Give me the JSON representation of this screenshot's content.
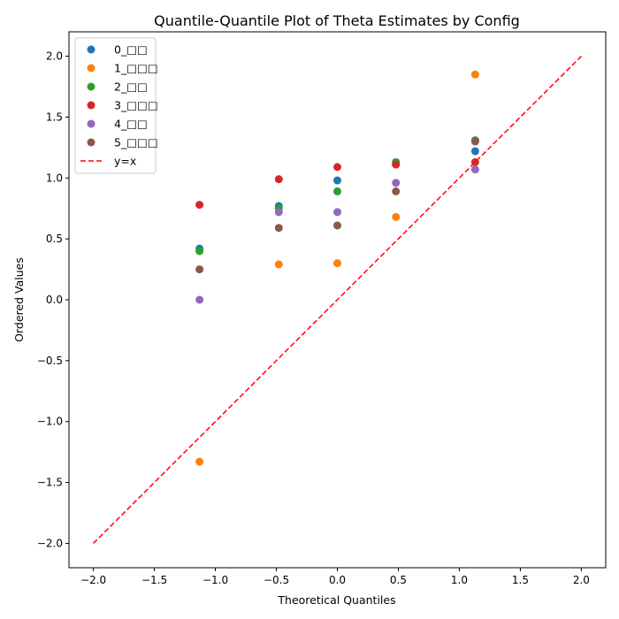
{
  "chart_data": {
    "type": "scatter",
    "title": "Quantile-Quantile Plot of Theta Estimates by Config",
    "xlabel": "Theoretical Quantiles",
    "ylabel": "Ordered Values",
    "xlim": [
      -2.2,
      2.2
    ],
    "ylim": [
      -2.2,
      2.2
    ],
    "xticks": [
      "−2.0",
      "−1.5",
      "−1.0",
      "−0.5",
      "0.0",
      "0.5",
      "1.0",
      "1.5",
      "2.0"
    ],
    "yticks": [
      "−2.0",
      "−1.5",
      "−1.0",
      "−0.5",
      "0.0",
      "0.5",
      "1.0",
      "1.5",
      "2.0"
    ],
    "grid": false,
    "legend_position": "top-left",
    "x": [
      -1.13,
      -0.48,
      0.0,
      0.48,
      1.13
    ],
    "series": [
      {
        "name": "0_□□",
        "color": "#1f77b4",
        "values": [
          0.42,
          0.77,
          0.98,
          1.12,
          1.22
        ]
      },
      {
        "name": "1_□□□",
        "color": "#ff7f0e",
        "values": [
          -1.33,
          0.29,
          0.3,
          0.68,
          1.85
        ]
      },
      {
        "name": "2_□□",
        "color": "#2ca02c",
        "values": [
          0.4,
          0.75,
          0.89,
          1.13,
          1.31
        ]
      },
      {
        "name": "3_□□□",
        "color": "#d62728",
        "values": [
          0.78,
          0.99,
          1.09,
          1.11,
          1.13
        ]
      },
      {
        "name": "4_□□",
        "color": "#9467bd",
        "values": [
          0.0,
          0.72,
          0.72,
          0.96,
          1.07
        ]
      },
      {
        "name": "5_□□□",
        "color": "#8c564b",
        "values": [
          0.25,
          0.59,
          0.61,
          0.89,
          1.3
        ]
      }
    ],
    "reference_line": {
      "name": "y=x",
      "color": "#ff0000",
      "style": "dashed",
      "x": [
        -2.0,
        2.0
      ],
      "y": [
        -2.0,
        2.0
      ]
    }
  }
}
